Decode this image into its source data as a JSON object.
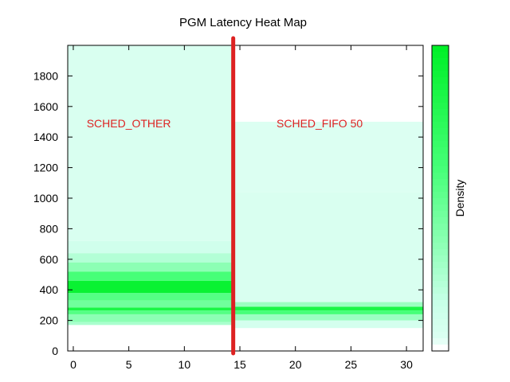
{
  "chart_data": {
    "type": "heatmap",
    "title": "PGM Latency Heat Map",
    "xlabel": "",
    "ylabel": "",
    "xlim": [
      -0.5,
      31.5
    ],
    "ylim": [
      0,
      2000
    ],
    "x_ticks": [
      0,
      5,
      10,
      15,
      20,
      25,
      30
    ],
    "y_ticks": [
      0,
      200,
      400,
      600,
      800,
      1000,
      1200,
      1400,
      1600,
      1800
    ],
    "colorbar_label": "Density",
    "colors": {
      "low": "#ffffff",
      "faint": "#d6fff0",
      "light": "#aaffcc",
      "mid": "#55ff88",
      "high": "#00ee33",
      "max": "#00ff33",
      "divider": "#dd2222",
      "annotation": "#dd2222"
    },
    "divider_x": 14.4,
    "annotations": [
      {
        "text": "SCHED_OTHER",
        "x": 1.2,
        "y": 1490
      },
      {
        "text": "SCHED_FIFO 50",
        "x": 18.3,
        "y": 1490
      }
    ],
    "regions": [
      {
        "name": "SCHED_OTHER",
        "x_range": [
          -0.5,
          14.4
        ],
        "bands": [
          {
            "y_range": [
              0,
              170
            ],
            "density": 0.0
          },
          {
            "y_range": [
              170,
              190
            ],
            "density": 0.25
          },
          {
            "y_range": [
              190,
              240
            ],
            "density": 0.35
          },
          {
            "y_range": [
              240,
              265
            ],
            "density": 0.55
          },
          {
            "y_range": [
              265,
              285
            ],
            "density": 0.85
          },
          {
            "y_range": [
              285,
              330
            ],
            "density": 0.45
          },
          {
            "y_range": [
              330,
              380
            ],
            "density": 0.55
          },
          {
            "y_range": [
              380,
              460
            ],
            "density": 0.95
          },
          {
            "y_range": [
              460,
              520
            ],
            "density": 0.6
          },
          {
            "y_range": [
              520,
              580
            ],
            "density": 0.35
          },
          {
            "y_range": [
              580,
              640
            ],
            "density": 0.22
          },
          {
            "y_range": [
              640,
              720
            ],
            "density": 0.1
          },
          {
            "y_range": [
              720,
              2000
            ],
            "density": 0.05
          }
        ]
      },
      {
        "name": "SCHED_FIFO 50",
        "x_range": [
          14.4,
          31.5
        ],
        "bands": [
          {
            "y_range": [
              0,
              150
            ],
            "density": 0.0
          },
          {
            "y_range": [
              150,
              200
            ],
            "density": 0.08
          },
          {
            "y_range": [
              200,
              240
            ],
            "density": 0.3
          },
          {
            "y_range": [
              240,
              265
            ],
            "density": 0.6
          },
          {
            "y_range": [
              265,
              290
            ],
            "density": 0.85
          },
          {
            "y_range": [
              290,
              320
            ],
            "density": 0.3
          },
          {
            "y_range": [
              320,
              1040
            ],
            "density": 0.05
          },
          {
            "y_range": [
              1040,
              1500
            ],
            "density": 0.03
          },
          {
            "y_range": [
              1500,
              2000
            ],
            "density": 0.0
          }
        ]
      }
    ]
  }
}
